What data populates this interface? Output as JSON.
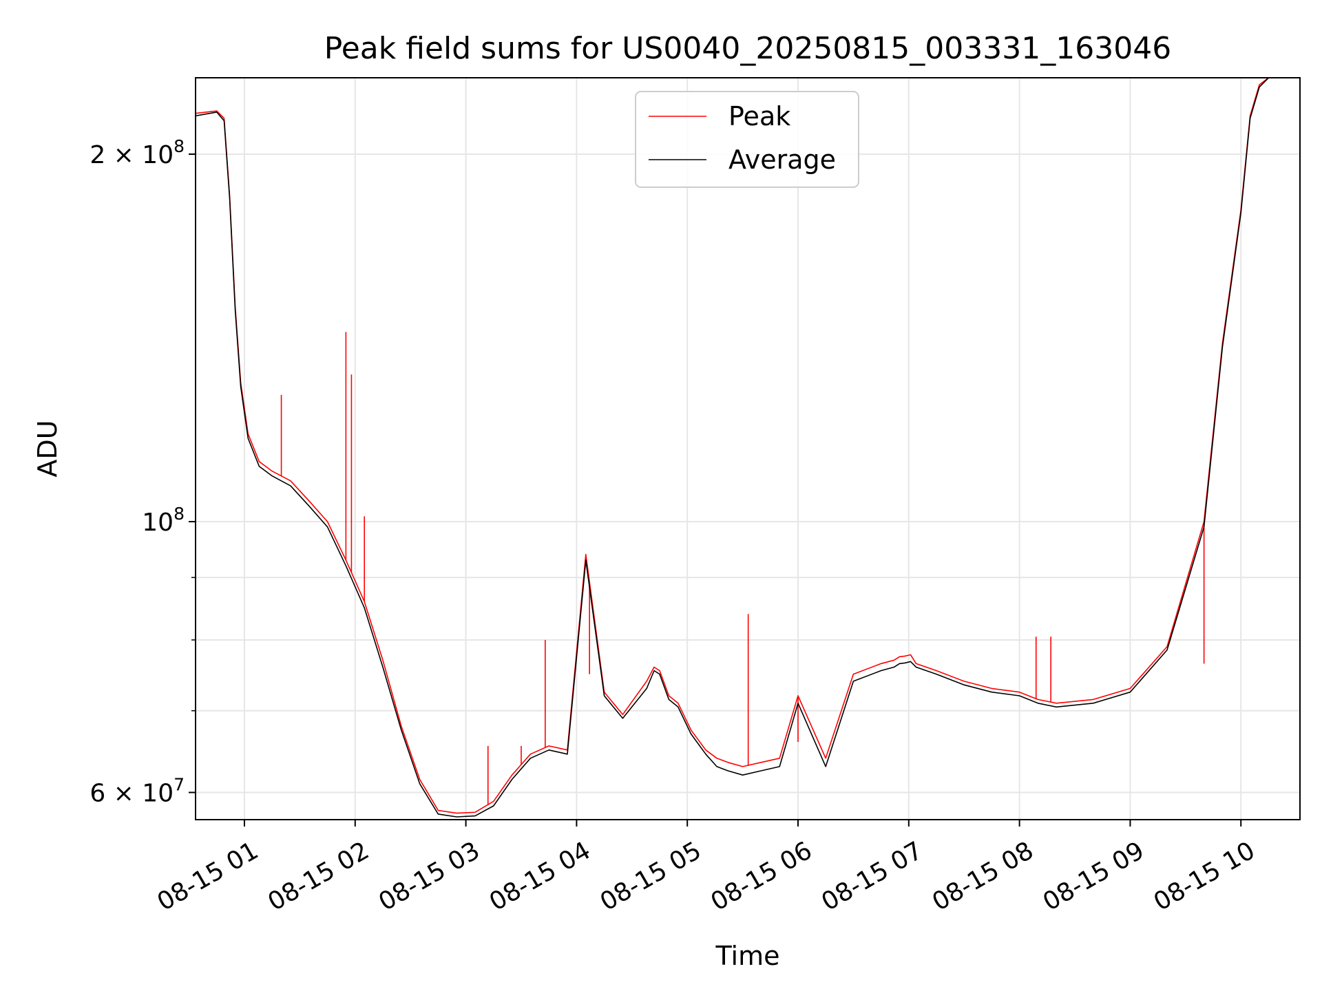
{
  "chart_data": {
    "type": "line",
    "title": "Peak field sums for US0040_20250815_003331_163046",
    "xlabel": "Time",
    "ylabel": "ADU",
    "y_scale": "log",
    "ylim": [
      57000000,
      231000000
    ],
    "xlim": [
      "08-15 00:33:31",
      "08-15 10:32:00"
    ],
    "grid": true,
    "legend": {
      "location": "upper center",
      "entries": [
        "Peak",
        "Average"
      ]
    },
    "x_ticks": [
      {
        "value": "08-15 01:00",
        "label": "08-15 01"
      },
      {
        "value": "08-15 02:00",
        "label": "08-15 02"
      },
      {
        "value": "08-15 03:00",
        "label": "08-15 03"
      },
      {
        "value": "08-15 04:00",
        "label": "08-15 04"
      },
      {
        "value": "08-15 05:00",
        "label": "08-15 05"
      },
      {
        "value": "08-15 06:00",
        "label": "08-15 06"
      },
      {
        "value": "08-15 07:00",
        "label": "08-15 07"
      },
      {
        "value": "08-15 08:00",
        "label": "08-15 08"
      },
      {
        "value": "08-15 09:00",
        "label": "08-15 09"
      },
      {
        "value": "08-15 10:00",
        "label": "08-15 10"
      }
    ],
    "y_ticks": [
      {
        "value": 60000000,
        "base": "6 × 10",
        "exp": "7"
      },
      {
        "value": 100000000,
        "base": "10",
        "exp": "8"
      },
      {
        "value": 200000000,
        "base": "2 × 10",
        "exp": "8"
      }
    ],
    "y_minor_ticks": [
      70000000,
      80000000,
      90000000
    ],
    "series": [
      {
        "name": "Peak",
        "color": "#ff0000",
        "x": [
          "08-15 00:33:31",
          "08-15 00:45:00",
          "08-15 00:49:00",
          "08-15 00:52:00",
          "08-15 00:55:00",
          "08-15 00:58:00",
          "08-15 01:02:00",
          "08-15 01:08:00",
          "08-15 01:15:00",
          "08-15 01:25:00",
          "08-15 01:35:00",
          "08-15 01:45:00",
          "08-15 01:55:00",
          "08-15 02:05:00",
          "08-15 02:15:00",
          "08-15 02:25:00",
          "08-15 02:35:00",
          "08-15 02:45:00",
          "08-15 02:55:00",
          "08-15 03:05:00",
          "08-15 03:15:00",
          "08-15 03:25:00",
          "08-15 03:35:00",
          "08-15 03:45:00",
          "08-15 03:55:00",
          "08-15 04:05:00",
          "08-15 04:15:00",
          "08-15 04:25:00",
          "08-15 04:38:00",
          "08-15 04:42:00",
          "08-15 04:45:00",
          "08-15 04:50:00",
          "08-15 04:55:00",
          "08-15 05:02:00",
          "08-15 05:10:00",
          "08-15 05:16:00",
          "08-15 05:22:00",
          "08-15 05:30:00",
          "08-15 05:40:00",
          "08-15 05:50:00",
          "08-15 06:00:00",
          "08-15 06:15:00",
          "08-15 06:30:00",
          "08-15 06:45:00",
          "08-15 06:52:00",
          "08-15 06:55:00",
          "08-15 06:58:00",
          "08-15 07:01:00",
          "08-15 07:04:00",
          "08-15 07:15:00",
          "08-15 07:30:00",
          "08-15 07:45:00",
          "08-15 08:00:00",
          "08-15 08:10:00",
          "08-15 08:20:00",
          "08-15 08:40:00",
          "08-15 09:00:00",
          "08-15 09:20:00",
          "08-15 09:40:00",
          "08-15 09:50:00",
          "08-15 10:00:00",
          "08-15 10:05:00",
          "08-15 10:10:00",
          "08-15 10:15:00",
          "08-15 10:20:00",
          "08-15 10:25:00",
          "08-15 10:29:00",
          "08-15 10:32:00"
        ],
        "values": [
          216000000,
          217000000,
          214000000,
          185000000,
          150000000,
          130000000,
          118000000,
          112000000,
          110000000,
          108000000,
          104000000,
          100000000,
          93000000,
          86000000,
          77000000,
          68000000,
          61500000,
          58000000,
          57700000,
          57800000,
          59000000,
          62000000,
          64500000,
          65500000,
          65000000,
          94000000,
          72500000,
          69500000,
          74000000,
          76000000,
          75500000,
          72000000,
          71000000,
          67500000,
          65000000,
          64000000,
          63500000,
          63000000,
          63500000,
          64000000,
          72000000,
          64000000,
          75000000,
          76500000,
          77000000,
          77500000,
          77600000,
          77800000,
          76500000,
          75500000,
          74000000,
          73000000,
          72500000,
          71500000,
          71000000,
          71500000,
          73000000,
          79000000,
          100000000,
          140000000,
          180000000,
          215000000,
          228000000,
          231000000,
          231000000,
          231000000,
          231000000,
          231000000
        ],
        "spikes": [
          {
            "x": "08-15 01:20:00",
            "y": 127000000
          },
          {
            "x": "08-15 01:58:00",
            "y": 132000000
          },
          {
            "x": "08-15 01:55:00",
            "y": 143000000
          },
          {
            "x": "08-15 02:05:00",
            "y": 101000000
          },
          {
            "x": "08-15 03:12:00",
            "y": 65500000
          },
          {
            "x": "08-15 03:30:00",
            "y": 65500000
          },
          {
            "x": "08-15 03:43:00",
            "y": 80000000
          },
          {
            "x": "08-15 04:07:00",
            "y": 75000000
          },
          {
            "x": "08-15 05:33:00",
            "y": 84000000
          },
          {
            "x": "08-15 06:00:00",
            "y": 66000000
          },
          {
            "x": "08-15 08:09:00",
            "y": 80500000
          },
          {
            "x": "08-15 08:17:00",
            "y": 80500000
          },
          {
            "x": "08-15 09:40:00",
            "y": 76500000
          }
        ]
      },
      {
        "name": "Average",
        "color": "#000000",
        "x": [
          "08-15 00:33:31",
          "08-15 00:45:00",
          "08-15 00:49:00",
          "08-15 00:52:00",
          "08-15 00:55:00",
          "08-15 00:58:00",
          "08-15 01:02:00",
          "08-15 01:08:00",
          "08-15 01:15:00",
          "08-15 01:25:00",
          "08-15 01:35:00",
          "08-15 01:45:00",
          "08-15 01:55:00",
          "08-15 02:05:00",
          "08-15 02:15:00",
          "08-15 02:25:00",
          "08-15 02:35:00",
          "08-15 02:45:00",
          "08-15 02:55:00",
          "08-15 03:05:00",
          "08-15 03:15:00",
          "08-15 03:25:00",
          "08-15 03:35:00",
          "08-15 03:45:00",
          "08-15 03:55:00",
          "08-15 04:05:00",
          "08-15 04:15:00",
          "08-15 04:25:00",
          "08-15 04:38:00",
          "08-15 04:42:00",
          "08-15 04:45:00",
          "08-15 04:50:00",
          "08-15 04:55:00",
          "08-15 05:02:00",
          "08-15 05:10:00",
          "08-15 05:16:00",
          "08-15 05:22:00",
          "08-15 05:30:00",
          "08-15 05:40:00",
          "08-15 05:50:00",
          "08-15 06:00:00",
          "08-15 06:15:00",
          "08-15 06:30:00",
          "08-15 06:45:00",
          "08-15 06:52:00",
          "08-15 06:55:00",
          "08-15 06:58:00",
          "08-15 07:01:00",
          "08-15 07:04:00",
          "08-15 07:15:00",
          "08-15 07:30:00",
          "08-15 07:45:00",
          "08-15 08:00:00",
          "08-15 08:10:00",
          "08-15 08:20:00",
          "08-15 08:40:00",
          "08-15 09:00:00",
          "08-15 09:20:00",
          "08-15 09:40:00",
          "08-15 09:50:00",
          "08-15 10:00:00",
          "08-15 10:05:00",
          "08-15 10:10:00",
          "08-15 10:15:00",
          "08-15 10:20:00",
          "08-15 10:25:00",
          "08-15 10:29:00",
          "08-15 10:32:00"
        ],
        "values": [
          215000000,
          216500000,
          213000000,
          184000000,
          149000000,
          129000000,
          117000000,
          111000000,
          109000000,
          107000000,
          103000000,
          99000000,
          92000000,
          85000000,
          76000000,
          67500000,
          61000000,
          57600000,
          57300000,
          57400000,
          58500000,
          61500000,
          64000000,
          65000000,
          64500000,
          93000000,
          72000000,
          69000000,
          73000000,
          75500000,
          75000000,
          71500000,
          70500000,
          67000000,
          64500000,
          63000000,
          62500000,
          62000000,
          62500000,
          63000000,
          71000000,
          63000000,
          74000000,
          75500000,
          76000000,
          76500000,
          76600000,
          76800000,
          76000000,
          75000000,
          73500000,
          72500000,
          72000000,
          71000000,
          70500000,
          71000000,
          72500000,
          78500000,
          99000000,
          139000000,
          179000000,
          214000000,
          227000000,
          231000000,
          231000000,
          231000000,
          231000000,
          231000000
        ]
      }
    ]
  }
}
